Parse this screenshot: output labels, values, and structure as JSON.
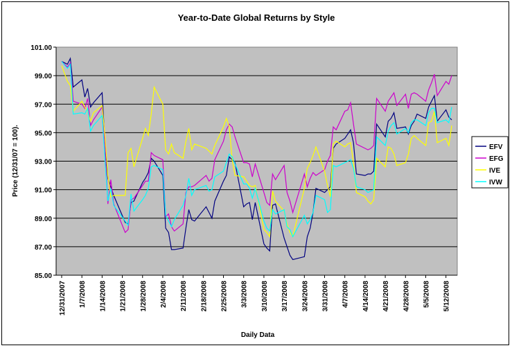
{
  "chart_data": {
    "type": "line",
    "title": "Year-to-Date Global Returns by Style",
    "xlabel": "Daily Data",
    "ylabel": "Price (12/31/07 = 100).",
    "ylim": [
      85,
      101
    ],
    "yticks": [
      "85.00",
      "87.00",
      "89.00",
      "91.00",
      "93.00",
      "95.00",
      "97.00",
      "99.00",
      "101.00"
    ],
    "xticks": [
      "12/31/2007",
      "1/7/2008",
      "1/14/2008",
      "1/21/2008",
      "1/28/2008",
      "2/4/2008",
      "2/11/2008",
      "2/18/2008",
      "2/25/2008",
      "3/3/2008",
      "3/10/2008",
      "3/17/2008",
      "3/24/2008",
      "3/31/2008",
      "4/7/2008",
      "4/14/2008",
      "4/21/2008",
      "4/28/2008",
      "5/5/2008",
      "5/12/2008"
    ],
    "grid": true,
    "legend_position": "right",
    "plot_background": "#c0c0c0",
    "x_days": [
      0,
      2,
      3,
      4,
      7,
      8,
      9,
      10,
      11,
      14,
      15,
      16,
      17,
      18,
      22,
      23,
      24,
      25,
      28,
      29,
      30,
      31,
      32,
      35,
      36,
      37,
      38,
      39,
      42,
      43,
      44,
      45,
      46,
      50,
      51,
      52,
      53,
      56,
      57,
      58,
      59,
      60,
      63,
      64,
      65,
      66,
      67,
      70,
      71,
      72,
      73,
      74,
      77,
      78,
      79,
      80,
      84,
      85,
      86,
      87,
      88,
      91,
      92,
      93,
      94,
      95,
      98,
      99,
      100,
      101,
      102,
      105,
      106,
      107,
      108,
      109,
      112,
      113,
      114,
      115,
      116,
      119,
      120,
      121,
      122,
      123,
      126,
      127,
      128,
      129,
      130,
      133,
      134,
      135
    ],
    "series": [
      {
        "name": "EFV",
        "color": "#000080",
        "values": [
          100.0,
          99.8,
          100.2,
          98.2,
          98.7,
          97.5,
          98.1,
          96.8,
          97.1,
          97.8,
          94.2,
          91.8,
          91.2,
          90.6,
          88.7,
          88.6,
          90.1,
          90.2,
          91.5,
          91.8,
          92.2,
          93.2,
          93.0,
          92.0,
          88.3,
          88.0,
          86.8,
          86.8,
          86.9,
          88.3,
          89.6,
          88.9,
          88.8,
          89.8,
          89.4,
          89.0,
          90.2,
          91.6,
          92.0,
          93.3,
          93.1,
          92.9,
          89.8,
          90.0,
          90.1,
          88.9,
          90.1,
          87.2,
          86.9,
          86.7,
          89.9,
          90.0,
          87.6,
          87.0,
          86.4,
          86.1,
          86.3,
          87.7,
          88.3,
          89.4,
          91.1,
          90.8,
          91.0,
          91.2,
          93.9,
          94.2,
          94.6,
          94.9,
          95.2,
          94.3,
          92.1,
          92.0,
          92.1,
          92.1,
          92.3,
          95.6,
          94.7,
          95.8,
          96.0,
          96.4,
          95.3,
          95.4,
          94.9,
          95.5,
          95.8,
          96.3,
          96.0,
          96.8,
          97.2,
          97.6,
          95.8,
          96.6,
          96.1,
          95.9
        ]
      },
      {
        "name": "EFG",
        "color": "#cc00cc",
        "values": [
          100.0,
          99.6,
          99.9,
          97.2,
          97.0,
          96.7,
          97.4,
          95.5,
          95.9,
          96.8,
          94.0,
          90.0,
          91.7,
          90.0,
          88.0,
          88.2,
          90.3,
          90.4,
          91.3,
          91.6,
          91.6,
          93.6,
          93.4,
          93.1,
          89.1,
          89.3,
          88.4,
          88.1,
          88.6,
          90.8,
          91.2,
          91.2,
          91.3,
          92.0,
          91.6,
          91.8,
          93.1,
          94.4,
          95.2,
          95.6,
          95.4,
          94.7,
          92.9,
          92.9,
          92.8,
          91.9,
          92.8,
          90.8,
          90.1,
          89.9,
          92.1,
          91.7,
          92.7,
          90.8,
          90.2,
          89.4,
          92.1,
          91.2,
          91.8,
          92.2,
          92.0,
          92.4,
          93.0,
          93.4,
          95.4,
          95.2,
          96.5,
          96.6,
          97.1,
          95.6,
          94.2,
          93.9,
          93.8,
          93.9,
          94.1,
          97.4,
          96.5,
          97.2,
          97.5,
          97.8,
          96.9,
          97.7,
          96.7,
          97.7,
          97.8,
          97.7,
          97.2,
          98.0,
          98.5,
          99.1,
          97.6,
          98.6,
          98.4,
          99.0
        ]
      },
      {
        "name": "IVE",
        "color": "#ffff00",
        "values": [
          99.7,
          98.6,
          98.3,
          96.5,
          97.2,
          96.8,
          96.5,
          95.8,
          96.4,
          96.9,
          94.7,
          92.0,
          90.5,
          90.6,
          90.6,
          93.6,
          93.9,
          92.6,
          94.6,
          95.3,
          94.8,
          96.3,
          98.2,
          97.0,
          93.8,
          93.5,
          94.2,
          93.6,
          93.2,
          94.4,
          95.3,
          93.8,
          94.2,
          93.9,
          93.7,
          93.5,
          94.1,
          95.4,
          96.0,
          95.4,
          93.1,
          92.0,
          91.9,
          91.6,
          91.3,
          91.2,
          91.3,
          88.2,
          88.0,
          87.7,
          90.9,
          90.2,
          89.5,
          88.6,
          88.0,
          87.7,
          91.1,
          92.5,
          92.9,
          93.4,
          94.0,
          92.3,
          91.3,
          90.5,
          94.2,
          94.4,
          94.0,
          94.2,
          94.3,
          92.9,
          90.8,
          90.5,
          90.2,
          90.0,
          90.3,
          93.2,
          92.6,
          94.0,
          93.9,
          93.5,
          92.7,
          92.9,
          93.5,
          94.6,
          94.8,
          94.6,
          94.1,
          95.7,
          95.8,
          96.5,
          94.3,
          94.6,
          94.1,
          95.5
        ]
      },
      {
        "name": "IVW",
        "color": "#00ffff",
        "values": [
          100.0,
          99.5,
          99.8,
          96.3,
          96.4,
          96.3,
          96.7,
          95.1,
          95.5,
          96.2,
          93.0,
          90.2,
          91.1,
          89.9,
          88.8,
          88.5,
          90.7,
          89.5,
          90.3,
          90.6,
          91.1,
          92.6,
          92.7,
          92.4,
          89.2,
          88.8,
          88.4,
          88.9,
          89.9,
          90.6,
          91.8,
          90.6,
          91.0,
          91.3,
          90.9,
          91.0,
          91.9,
          92.3,
          92.9,
          93.5,
          93.3,
          92.8,
          91.4,
          91.4,
          91.1,
          90.4,
          91.1,
          88.8,
          88.3,
          88.1,
          89.6,
          89.3,
          89.6,
          88.4,
          88.2,
          87.7,
          89.2,
          88.6,
          88.9,
          89.4,
          90.6,
          90.3,
          89.4,
          89.6,
          92.7,
          92.6,
          92.9,
          93.0,
          93.1,
          92.5,
          91.2,
          91.0,
          90.8,
          90.9,
          91.0,
          94.7,
          94.1,
          95.1,
          95.5,
          95.7,
          94.9,
          95.3,
          95.0,
          95.7,
          95.9,
          95.9,
          95.5,
          96.4,
          96.7,
          96.7,
          95.7,
          95.9,
          95.7,
          96.8
        ]
      }
    ]
  }
}
